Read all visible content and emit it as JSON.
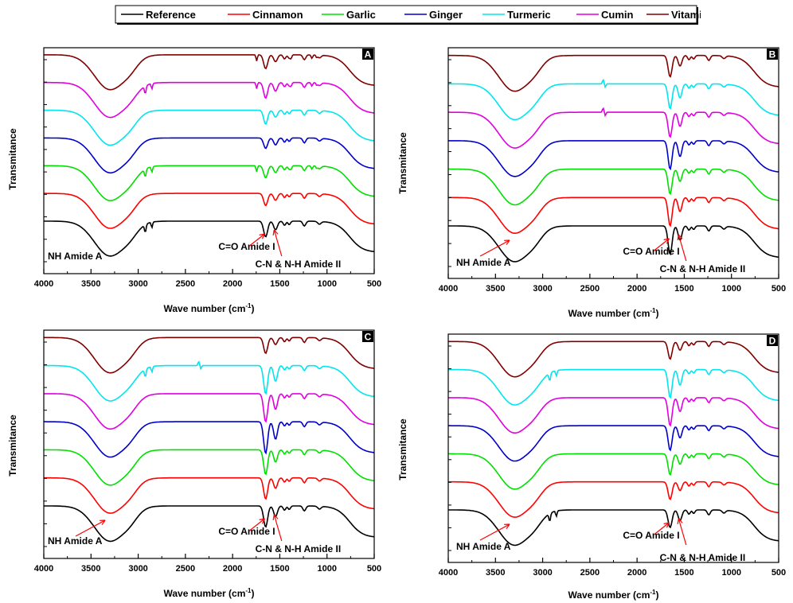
{
  "colors": {
    "Reference": "#000000",
    "Cinnamon": "#ff0000",
    "Garlic": "#00e000",
    "Ginger": "#0000cc",
    "Turmeric": "#00e5ee",
    "Cumin": "#e000e0",
    "Vitamin C": "#800000",
    "arrow": "#ff0000"
  },
  "chart_data": [
    {
      "type": "line",
      "panel_label": "A",
      "xlabel_main": "Wave number (cm",
      "xlabel_sup": "-1",
      "xlabel_close": ")",
      "ylabel": "Transmitance",
      "xlim": [
        4000,
        500
      ],
      "x_ticks": [
        4000,
        3500,
        3000,
        2500,
        2000,
        1500,
        1000,
        500
      ],
      "x_tick_labels": [
        "4000",
        "3500",
        "3000",
        "2500",
        "2000",
        "1500",
        "1000",
        "500"
      ],
      "series": [
        {
          "name": "Reference"
        },
        {
          "name": "Cinnamon"
        },
        {
          "name": "Garlic"
        },
        {
          "name": "Ginger"
        },
        {
          "name": "Turmeric"
        },
        {
          "name": "Cumin"
        },
        {
          "name": "Vitamin C"
        }
      ],
      "annotations": [
        "NH Amide A",
        "C=O Amide I",
        "C-N & N-H Amide II"
      ]
    },
    {
      "type": "line",
      "panel_label": "B",
      "xlabel_main": "Wave number (cm",
      "xlabel_sup": "-1",
      "xlabel_close": ")",
      "ylabel": "Transmitance",
      "xlim": [
        4000,
        500
      ],
      "x_ticks": [
        4000,
        3500,
        3000,
        2500,
        2000,
        1500,
        1000,
        500
      ],
      "x_tick_labels": [
        "4000",
        "3500",
        "3000",
        "2500",
        "2000",
        "1500",
        "1000",
        "500"
      ],
      "series": [
        {
          "name": "Reference"
        },
        {
          "name": "Cinnamon"
        },
        {
          "name": "Garlic"
        },
        {
          "name": "Ginger"
        },
        {
          "name": "Cumin"
        },
        {
          "name": "Turmeric"
        },
        {
          "name": "Vitamin C"
        }
      ],
      "annotations": [
        "NH Amide A",
        "C=O Amide I",
        "C-N & N-H Amide II"
      ]
    },
    {
      "type": "line",
      "panel_label": "C",
      "xlabel_main": "Wave number (cm",
      "xlabel_sup": "-1",
      "xlabel_close": ")",
      "ylabel": "Transmitance",
      "xlim": [
        4000,
        500
      ],
      "x_ticks": [
        4000,
        3500,
        3000,
        2500,
        2000,
        1500,
        1000,
        500
      ],
      "x_tick_labels": [
        "4000",
        "3500",
        "3000",
        "2500",
        "2000",
        "1500",
        "1000",
        "500"
      ],
      "series": [
        {
          "name": "Reference"
        },
        {
          "name": "Cinnamon"
        },
        {
          "name": "Garlic"
        },
        {
          "name": "Ginger"
        },
        {
          "name": "Cumin"
        },
        {
          "name": "Turmeric"
        },
        {
          "name": "Vitamin C"
        }
      ],
      "annotations": [
        "NH Amide A",
        "C=O Amide I",
        "C-N & N-H Amide II"
      ]
    },
    {
      "type": "line",
      "panel_label": "D",
      "xlabel_main": "Wave number (cm",
      "xlabel_sup": "-1",
      "xlabel_close": ")",
      "ylabel": "Transmitance",
      "xlim": [
        4000,
        500
      ],
      "x_ticks": [
        4000,
        3500,
        3000,
        2500,
        2000,
        1500,
        1000,
        500
      ],
      "x_tick_labels": [
        "4000",
        "3500",
        "3000",
        "2500",
        "2000",
        "1500",
        "1000",
        "500"
      ],
      "series": [
        {
          "name": "Reference"
        },
        {
          "name": "Cinnamon"
        },
        {
          "name": "Garlic"
        },
        {
          "name": "Ginger"
        },
        {
          "name": "Cumin"
        },
        {
          "name": "Turmeric"
        },
        {
          "name": "Vitamin C"
        }
      ],
      "annotations": [
        "NH Amide A",
        "C=O Amide I",
        "C-N & N-H Amide II"
      ]
    }
  ],
  "legend": {
    "placement": "top-center",
    "items": [
      "Reference",
      "Cinnamon",
      "Garlic",
      "Ginger",
      "Turmeric",
      "Cumin",
      "Vitamin C"
    ]
  }
}
